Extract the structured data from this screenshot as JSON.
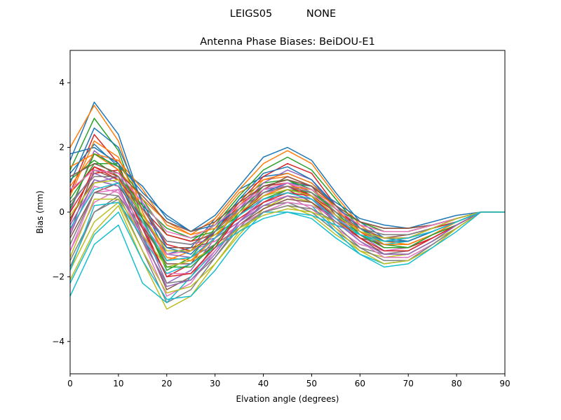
{
  "figure": {
    "suptitle_left": "LEIGS05",
    "suptitle_right": "NONE"
  },
  "chart_data": {
    "type": "line",
    "title": "Antenna Phase Biases: BeiDOU-E1",
    "xlabel": "Elvation angle (degrees)",
    "ylabel": "Bias (mm)",
    "xlim": [
      0,
      90
    ],
    "ylim": [
      -5,
      5
    ],
    "xticks": [
      "0",
      "10",
      "20",
      "30",
      "40",
      "50",
      "60",
      "70",
      "80",
      "90"
    ],
    "xtick_values": [
      0,
      10,
      20,
      30,
      40,
      50,
      60,
      70,
      80,
      90
    ],
    "yticks": [
      "−4",
      "−2",
      "0",
      "2",
      "4"
    ],
    "ytick_values": [
      -4,
      -2,
      0,
      2,
      4
    ],
    "grid": false,
    "legend": "none",
    "palette": [
      "#1f77b4",
      "#ff7f0e",
      "#2ca02c",
      "#d62728",
      "#9467bd",
      "#8c564b",
      "#e377c2",
      "#7f7f7f",
      "#bcbd22",
      "#17becf"
    ],
    "x": [
      0,
      5,
      10,
      15,
      20,
      25,
      30,
      35,
      40,
      45,
      50,
      55,
      60,
      65,
      70,
      75,
      80,
      85,
      90
    ],
    "series": [
      {
        "values": [
          1.6,
          3.4,
          2.4,
          0.2,
          -1.3,
          -1.1,
          -0.2,
          0.7,
          1.1,
          1.2,
          0.9,
          0.2,
          -0.3,
          -0.5,
          -0.5,
          -0.4,
          -0.2,
          0.0,
          0.0
        ]
      },
      {
        "values": [
          2.0,
          3.3,
          2.2,
          0.0,
          -1.5,
          -1.2,
          -0.3,
          0.6,
          1.0,
          1.1,
          0.8,
          0.2,
          -0.3,
          -0.6,
          -0.6,
          -0.4,
          -0.2,
          0.0,
          0.0
        ]
      },
      {
        "values": [
          1.3,
          2.9,
          1.9,
          -0.2,
          -1.8,
          -1.4,
          -0.5,
          0.4,
          0.9,
          1.0,
          0.6,
          0.0,
          -0.5,
          -0.7,
          -0.7,
          -0.5,
          -0.3,
          0.0,
          0.0
        ]
      },
      {
        "values": [
          0.6,
          2.4,
          1.5,
          -0.4,
          -2.0,
          -1.6,
          -0.6,
          0.2,
          0.8,
          0.9,
          0.5,
          -0.1,
          -0.6,
          -0.8,
          -0.8,
          -0.5,
          -0.3,
          0.0,
          0.0
        ]
      },
      {
        "values": [
          0.0,
          1.9,
          1.3,
          -0.5,
          -2.2,
          -1.8,
          -0.8,
          0.1,
          0.7,
          0.8,
          0.4,
          -0.2,
          -0.7,
          -0.9,
          -0.9,
          -0.6,
          -0.3,
          0.0,
          0.0
        ]
      },
      {
        "values": [
          -0.6,
          1.3,
          1.0,
          -0.7,
          -2.4,
          -2.0,
          -1.0,
          -0.1,
          0.5,
          0.7,
          0.3,
          -0.3,
          -0.8,
          -1.0,
          -1.0,
          -0.7,
          -0.4,
          0.0,
          0.0
        ]
      },
      {
        "values": [
          -1.2,
          0.6,
          0.7,
          -0.9,
          -2.6,
          -2.2,
          -1.2,
          -0.3,
          0.3,
          0.5,
          0.1,
          -0.5,
          -1.0,
          -1.2,
          -1.1,
          -0.8,
          -0.4,
          0.0,
          0.0
        ]
      },
      {
        "values": [
          -1.7,
          0.0,
          0.4,
          -1.2,
          -2.8,
          -2.4,
          -1.4,
          -0.4,
          0.2,
          0.3,
          0.0,
          -0.6,
          -1.1,
          -1.3,
          -1.2,
          -0.8,
          -0.4,
          0.0,
          0.0
        ]
      },
      {
        "values": [
          -2.1,
          -0.6,
          0.2,
          -1.5,
          -3.0,
          -2.6,
          -1.6,
          -0.6,
          0.0,
          0.2,
          -0.1,
          -0.7,
          -1.2,
          -1.4,
          -1.3,
          -0.9,
          -0.5,
          0.0,
          0.0
        ]
      },
      {
        "values": [
          -2.6,
          -1.0,
          -0.4,
          -2.2,
          -2.8,
          -2.0,
          -1.2,
          -0.4,
          0.0,
          0.0,
          -0.2,
          -0.8,
          -1.3,
          -1.6,
          -1.5,
          -1.0,
          -0.5,
          0.0,
          0.0
        ]
      },
      {
        "values": [
          1.2,
          2.1,
          1.4,
          0.8,
          -0.2,
          -0.6,
          -0.1,
          0.8,
          1.7,
          2.0,
          1.6,
          0.6,
          -0.3,
          -0.8,
          -0.9,
          -0.6,
          -0.3,
          0.0,
          0.0
        ]
      },
      {
        "values": [
          0.8,
          1.8,
          1.6,
          0.7,
          -0.4,
          -0.7,
          -0.2,
          0.7,
          1.5,
          1.9,
          1.5,
          0.5,
          -0.4,
          -0.9,
          -1.0,
          -0.7,
          -0.3,
          0.0,
          0.0
        ]
      },
      {
        "values": [
          0.4,
          1.5,
          1.5,
          0.4,
          -0.7,
          -0.9,
          -0.4,
          0.5,
          1.3,
          1.7,
          1.3,
          0.4,
          -0.5,
          -1.0,
          -1.1,
          -0.7,
          -0.3,
          0.0,
          0.0
        ]
      },
      {
        "values": [
          0.0,
          1.2,
          1.3,
          0.1,
          -1.0,
          -1.2,
          -0.6,
          0.3,
          1.1,
          1.5,
          1.2,
          0.2,
          -0.6,
          -1.1,
          -1.1,
          -0.8,
          -0.4,
          0.0,
          0.0
        ]
      },
      {
        "values": [
          -0.4,
          0.9,
          1.1,
          -0.2,
          -1.3,
          -1.4,
          -0.8,
          0.1,
          0.9,
          1.3,
          1.0,
          0.1,
          -0.7,
          -1.2,
          -1.2,
          -0.8,
          -0.4,
          0.0,
          0.0
        ]
      },
      {
        "values": [
          -0.8,
          0.6,
          0.9,
          -0.4,
          -1.6,
          -1.6,
          -1.0,
          -0.1,
          0.7,
          1.1,
          0.8,
          -0.1,
          -0.8,
          -1.3,
          -1.3,
          -0.9,
          -0.4,
          0.0,
          0.0
        ]
      },
      {
        "values": [
          -1.2,
          0.3,
          0.7,
          -0.7,
          -1.9,
          -1.9,
          -1.2,
          -0.3,
          0.5,
          0.9,
          0.6,
          -0.2,
          -0.9,
          -1.4,
          -1.4,
          -1.0,
          -0.5,
          0.0,
          0.0
        ]
      },
      {
        "values": [
          -1.5,
          0.0,
          0.5,
          -0.9,
          -2.2,
          -2.1,
          -1.4,
          -0.5,
          0.3,
          0.7,
          0.5,
          -0.4,
          -1.1,
          -1.5,
          -1.5,
          -1.0,
          -0.5,
          0.0,
          0.0
        ]
      },
      {
        "values": [
          -1.8,
          -0.3,
          0.3,
          -1.2,
          -2.5,
          -2.3,
          -1.6,
          -0.7,
          0.1,
          0.5,
          0.3,
          -0.5,
          -1.2,
          -1.6,
          -1.5,
          -1.1,
          -0.5,
          0.0,
          0.0
        ]
      },
      {
        "values": [
          -2.2,
          -0.7,
          0.0,
          -1.5,
          -2.7,
          -2.6,
          -1.8,
          -0.8,
          0.0,
          0.3,
          0.2,
          -0.6,
          -1.3,
          -1.7,
          -1.6,
          -1.1,
          -0.6,
          0.0,
          0.0
        ]
      },
      {
        "values": [
          1.8,
          2.0,
          1.5,
          0.6,
          -0.1,
          -0.6,
          -0.4,
          0.1,
          0.6,
          0.9,
          0.8,
          0.3,
          -0.2,
          -0.4,
          -0.5,
          -0.3,
          -0.1,
          0.0,
          0.0
        ]
      },
      {
        "values": [
          1.4,
          1.8,
          1.3,
          0.4,
          -0.3,
          -0.7,
          -0.5,
          0.0,
          0.5,
          0.8,
          0.7,
          0.2,
          -0.3,
          -0.5,
          -0.5,
          -0.4,
          -0.2,
          0.0,
          0.0
        ]
      },
      {
        "values": [
          1.0,
          1.6,
          1.1,
          0.2,
          -0.5,
          -0.8,
          -0.6,
          -0.1,
          0.4,
          0.7,
          0.6,
          0.1,
          -0.3,
          -0.6,
          -0.6,
          -0.4,
          -0.2,
          0.0,
          0.0
        ]
      },
      {
        "values": [
          0.6,
          1.4,
          1.0,
          0.1,
          -0.7,
          -0.9,
          -0.7,
          -0.2,
          0.3,
          0.6,
          0.5,
          0.0,
          -0.4,
          -0.6,
          -0.6,
          -0.4,
          -0.2,
          0.0,
          0.0
        ]
      },
      {
        "values": [
          0.2,
          1.2,
          0.9,
          -0.1,
          -0.9,
          -1.0,
          -0.8,
          -0.3,
          0.2,
          0.5,
          0.4,
          -0.1,
          -0.5,
          -0.7,
          -0.7,
          -0.5,
          -0.2,
          0.0,
          0.0
        ]
      },
      {
        "values": [
          -0.2,
          1.0,
          0.8,
          -0.2,
          -1.1,
          -1.1,
          -0.9,
          -0.4,
          0.1,
          0.4,
          0.3,
          -0.2,
          -0.5,
          -0.8,
          -0.7,
          -0.5,
          -0.2,
          0.0,
          0.0
        ]
      },
      {
        "values": [
          -0.6,
          0.8,
          0.6,
          -0.4,
          -1.3,
          -1.2,
          -0.9,
          -0.4,
          0.0,
          0.3,
          0.2,
          -0.2,
          -0.6,
          -0.8,
          -0.8,
          -0.5,
          -0.2,
          0.0,
          0.0
        ]
      },
      {
        "values": [
          -1.0,
          0.6,
          0.5,
          -0.5,
          -1.5,
          -1.4,
          -1.0,
          -0.5,
          0.0,
          0.2,
          0.1,
          -0.3,
          -0.6,
          -0.9,
          -0.8,
          -0.6,
          -0.3,
          0.0,
          0.0
        ]
      },
      {
        "values": [
          -1.4,
          0.4,
          0.4,
          -0.7,
          -1.7,
          -1.5,
          -1.1,
          -0.5,
          -0.1,
          0.1,
          0.0,
          -0.3,
          -0.7,
          -0.9,
          -0.9,
          -0.6,
          -0.3,
          0.0,
          0.0
        ]
      },
      {
        "values": [
          -1.8,
          0.2,
          0.3,
          -0.8,
          -1.9,
          -1.6,
          -1.1,
          -0.6,
          -0.2,
          0.0,
          -0.1,
          -0.4,
          -0.7,
          -1.0,
          -0.9,
          -0.6,
          -0.3,
          0.0,
          0.0
        ]
      },
      {
        "values": [
          0.9,
          2.6,
          2.0,
          0.3,
          -1.1,
          -1.3,
          -0.6,
          0.4,
          1.2,
          1.4,
          1.0,
          0.2,
          -0.5,
          -0.9,
          -0.9,
          -0.6,
          -0.3,
          0.0,
          0.0
        ]
      },
      {
        "values": [
          0.5,
          2.2,
          1.7,
          0.0,
          -1.4,
          -1.5,
          -0.8,
          0.2,
          1.0,
          1.2,
          0.9,
          0.1,
          -0.6,
          -1.0,
          -1.0,
          -0.7,
          -0.3,
          0.0,
          0.0
        ]
      },
      {
        "values": [
          0.1,
          1.8,
          1.4,
          -0.2,
          -1.7,
          -1.7,
          -1.0,
          0.0,
          0.8,
          1.0,
          0.7,
          0.0,
          -0.7,
          -1.1,
          -1.1,
          -0.7,
          -0.4,
          0.0,
          0.0
        ]
      },
      {
        "values": [
          -0.3,
          1.4,
          1.1,
          -0.5,
          -2.0,
          -1.9,
          -1.1,
          -0.1,
          0.6,
          0.8,
          0.5,
          -0.2,
          -0.8,
          -1.2,
          -1.2,
          -0.8,
          -0.4,
          0.0,
          0.0
        ]
      },
      {
        "values": [
          -0.7,
          1.0,
          0.8,
          -0.8,
          -2.3,
          -2.1,
          -1.3,
          -0.3,
          0.4,
          0.6,
          0.4,
          -0.3,
          -0.9,
          -1.3,
          -1.3,
          -0.9,
          -0.4,
          0.0,
          0.0
        ]
      },
      {
        "values": [
          1.1,
          1.5,
          1.2,
          0.5,
          -0.3,
          -0.6,
          -0.3,
          0.3,
          0.8,
          1.0,
          0.8,
          0.2,
          -0.3,
          -0.5,
          -0.5,
          -0.4,
          -0.2,
          0.0,
          0.0
        ]
      },
      {
        "values": [
          0.7,
          1.3,
          1.2,
          0.3,
          -0.6,
          -0.8,
          -0.4,
          0.2,
          0.7,
          0.9,
          0.7,
          0.1,
          -0.4,
          -0.6,
          -0.6,
          -0.4,
          -0.2,
          0.0,
          0.0
        ]
      },
      {
        "values": [
          0.3,
          1.1,
          1.1,
          0.1,
          -0.9,
          -1.0,
          -0.6,
          0.1,
          0.6,
          0.8,
          0.6,
          0.0,
          -0.5,
          -0.7,
          -0.7,
          -0.5,
          -0.2,
          0.0,
          0.0
        ]
      },
      {
        "values": [
          -0.1,
          0.9,
          1.0,
          -0.1,
          -1.2,
          -1.2,
          -0.7,
          0.0,
          0.5,
          0.7,
          0.5,
          -0.1,
          -0.6,
          -0.8,
          -0.8,
          -0.5,
          -0.2,
          0.0,
          0.0
        ]
      },
      {
        "values": [
          -0.5,
          0.7,
          0.9,
          -0.3,
          -1.5,
          -1.4,
          -0.8,
          -0.1,
          0.4,
          0.6,
          0.4,
          -0.2,
          -0.7,
          -0.9,
          -0.8,
          -0.6,
          -0.3,
          0.0,
          0.0
        ]
      }
    ]
  }
}
